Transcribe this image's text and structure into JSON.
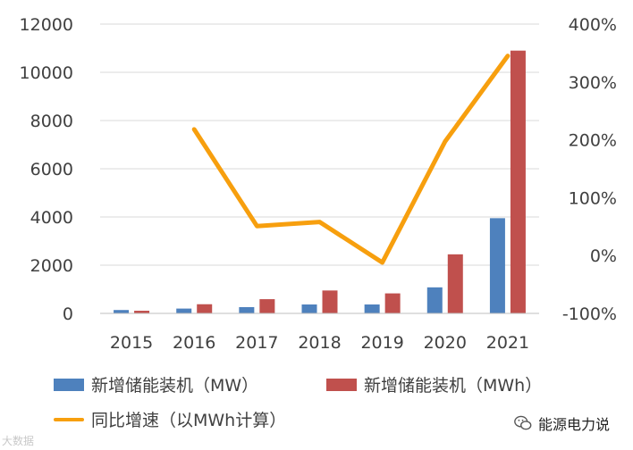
{
  "chart_data": {
    "type": "bar",
    "categories": [
      "2015",
      "2016",
      "2017",
      "2018",
      "2019",
      "2020",
      "2021"
    ],
    "series": [
      {
        "name": "新增储能装机（MW）",
        "type": "bar",
        "axis": "left",
        "color": "#4e81bd",
        "values": [
          140,
          200,
          260,
          370,
          370,
          1080,
          3950
        ]
      },
      {
        "name": "新增储能装机（MWh）",
        "type": "bar",
        "axis": "left",
        "color": "#c0504d",
        "values": [
          110,
          380,
          590,
          950,
          830,
          2450,
          10900
        ]
      },
      {
        "name": "同比增速（以MWh计算）",
        "type": "line",
        "axis": "right",
        "color": "#f79f0e",
        "values": [
          null,
          218,
          51,
          58,
          -12,
          197,
          345
        ]
      }
    ],
    "ylim": [
      0,
      12000
    ],
    "yticks": [
      "0",
      "2000",
      "4000",
      "6000",
      "8000",
      "10000",
      "12000"
    ],
    "y2lim": [
      -100,
      400
    ],
    "y2ticks": [
      "-100%",
      "0%",
      "100%",
      "200%",
      "300%",
      "400%"
    ],
    "grid": true
  },
  "watermark": {
    "text": "能源电力说",
    "icon": "wechat-icon"
  },
  "corner_logo": "大数据"
}
